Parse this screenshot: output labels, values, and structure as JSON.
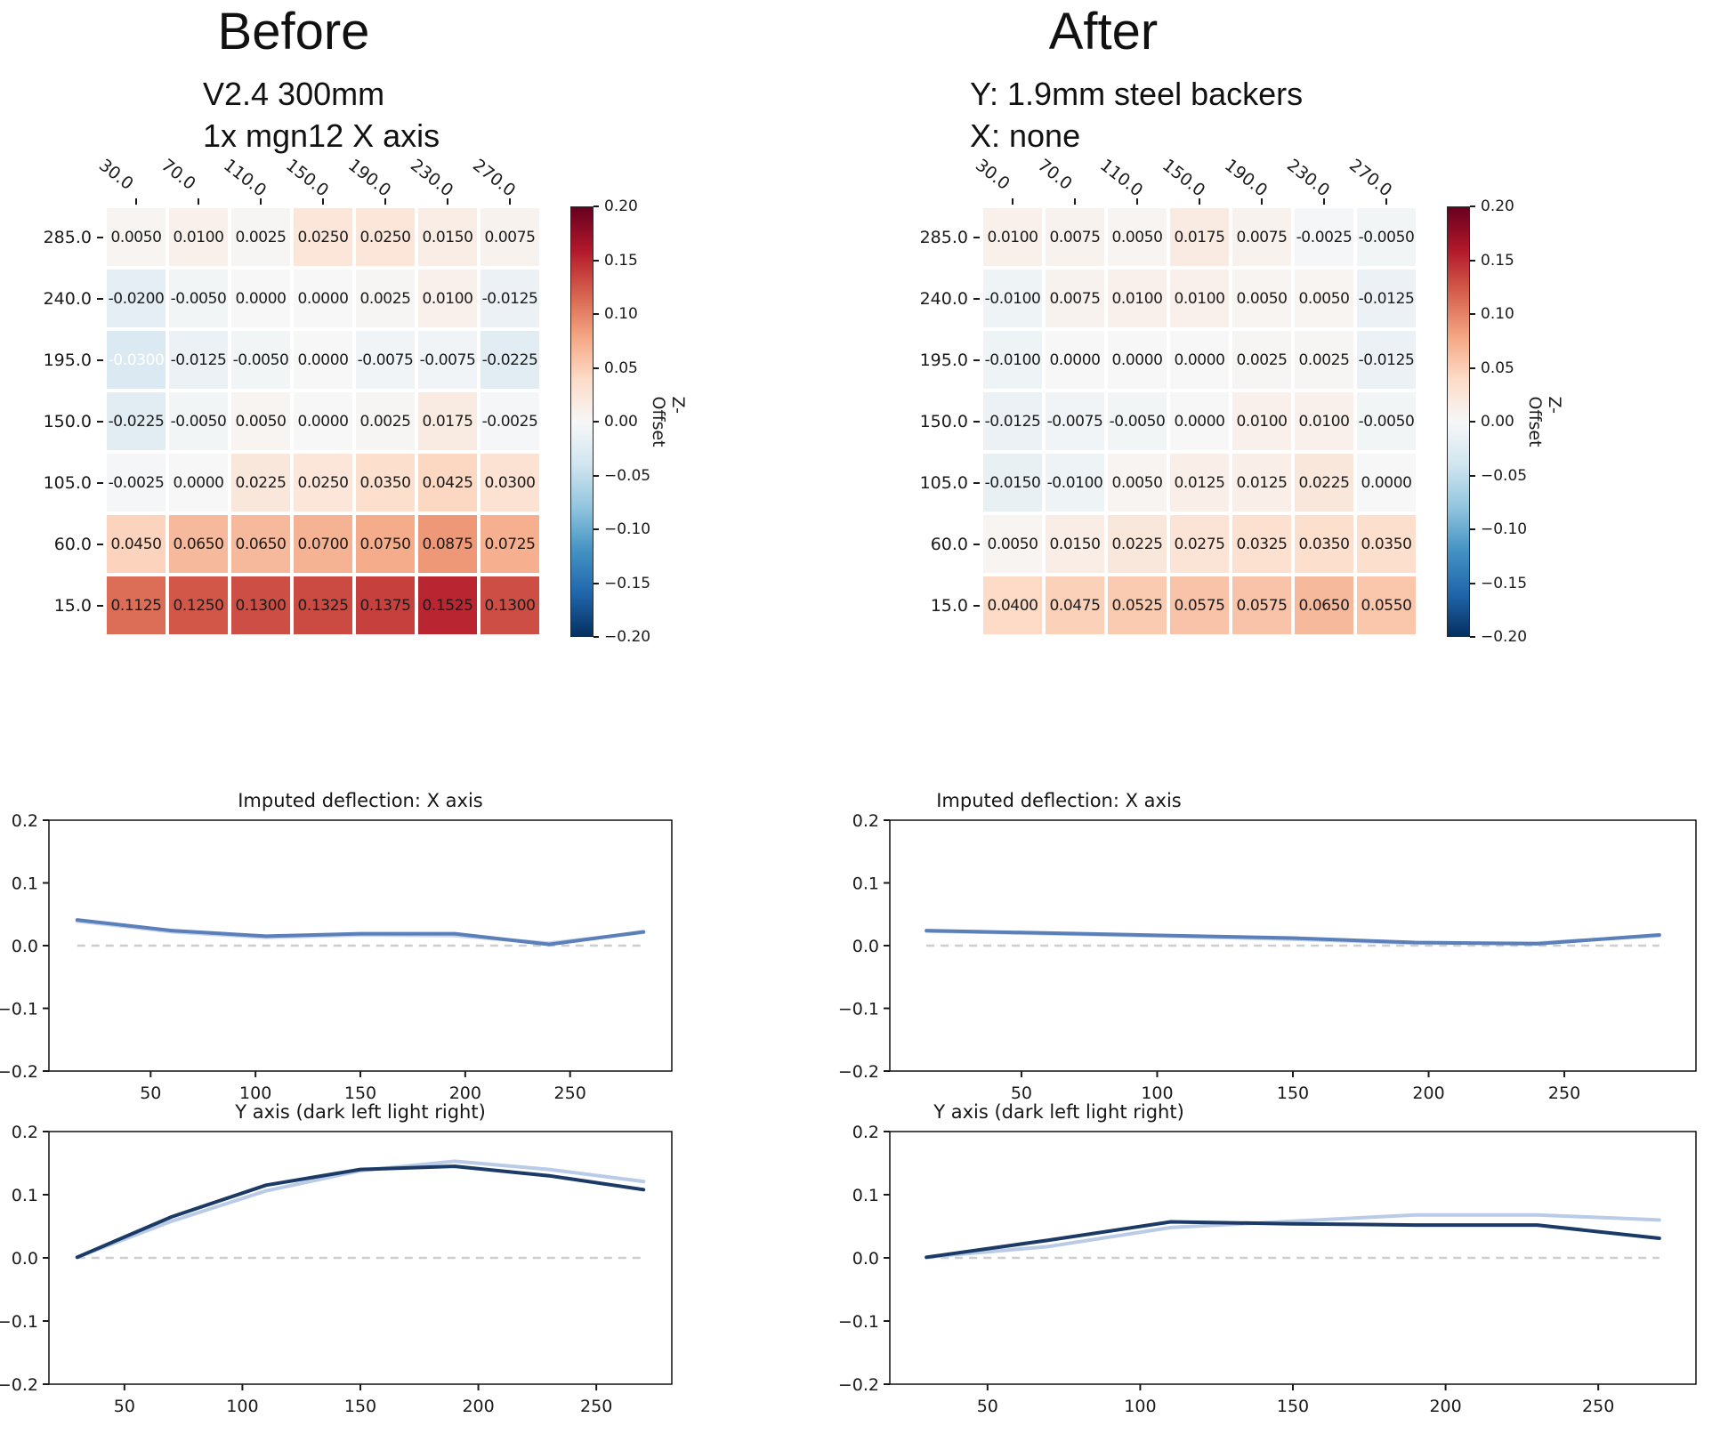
{
  "colors": {
    "background": "#ffffff",
    "text": "#1a1a1a",
    "cell_text": "#1b1b1b",
    "cell_text_light": "#ffffff",
    "zero_line": "#cdcdcd",
    "axes_box": "#000000",
    "line_primary": "#5b7fb9",
    "line_secondary": "#c7d4eb",
    "line_dark": "#1c3a66"
  },
  "colorbar_gradient": [
    "#053061",
    "#2166ac",
    "#4393c3",
    "#92c5de",
    "#d1e5f0",
    "#f7f7f7",
    "#fddbc7",
    "#f4a582",
    "#d6604d",
    "#b2182b",
    "#67001f"
  ],
  "chart_data": [
    {
      "type": "heatmap",
      "title": "Before",
      "subtitle": [
        "V2.4 300mm",
        "1x mgn12 X axis"
      ],
      "x_ticklabels": [
        "30.0",
        "70.0",
        "110.0",
        "150.0",
        "190.0",
        "230.0",
        "270.0"
      ],
      "y_ticklabels": [
        "285.0",
        "240.0",
        "195.0",
        "150.0",
        "105.0",
        "60.0",
        "15.0"
      ],
      "cell_labels": [
        [
          "0.0050",
          "0.0100",
          "0.0025",
          "0.0250",
          "0.0250",
          "0.0150",
          "0.0075"
        ],
        [
          "-0.0200",
          "-0.0050",
          "0.0000",
          "0.0000",
          "0.0025",
          "0.0100",
          "-0.0125"
        ],
        [
          "-0.0300",
          "-0.0125",
          "-0.0050",
          "0.0000",
          "-0.0075",
          "-0.0075",
          "-0.0225"
        ],
        [
          "-0.0225",
          "-0.0050",
          "0.0050",
          "0.0000",
          "0.0025",
          "0.0175",
          "-0.0025"
        ],
        [
          "-0.0025",
          "0.0000",
          "0.0225",
          "0.0250",
          "0.0350",
          "0.0425",
          "0.0300"
        ],
        [
          "0.0450",
          "0.0650",
          "0.0650",
          "0.0700",
          "0.0750",
          "0.0875",
          "0.0725"
        ],
        [
          "0.1125",
          "0.1250",
          "0.1300",
          "0.1325",
          "0.1375",
          "0.1525",
          "0.1300"
        ]
      ],
      "white_text_cells": [
        [
          2,
          0
        ]
      ],
      "vmin": -0.2,
      "vmax": 0.2,
      "colorbar": {
        "label": "Z-Offset",
        "ticks": [
          "0.20",
          "0.15",
          "0.10",
          "0.05",
          "0.00",
          "−0.05",
          "−0.10",
          "−0.15",
          "−0.20"
        ]
      }
    },
    {
      "type": "heatmap",
      "title": "After",
      "subtitle": [
        "Y: 1.9mm steel backers",
        "X: none"
      ],
      "x_ticklabels": [
        "30.0",
        "70.0",
        "110.0",
        "150.0",
        "190.0",
        "230.0",
        "270.0"
      ],
      "y_ticklabels": [
        "285.0",
        "240.0",
        "195.0",
        "150.0",
        "105.0",
        "60.0",
        "15.0"
      ],
      "cell_labels": [
        [
          "0.0100",
          "0.0075",
          "0.0050",
          "0.0175",
          "0.0075",
          "-0.0025",
          "-0.0050"
        ],
        [
          "-0.0100",
          "0.0075",
          "0.0100",
          "0.0100",
          "0.0050",
          "0.0050",
          "-0.0125"
        ],
        [
          "-0.0100",
          "0.0000",
          "0.0000",
          "0.0000",
          "0.0025",
          "0.0025",
          "-0.0125"
        ],
        [
          "-0.0125",
          "-0.0075",
          "-0.0050",
          "0.0000",
          "0.0100",
          "0.0100",
          "-0.0050"
        ],
        [
          "-0.0150",
          "-0.0100",
          "0.0050",
          "0.0125",
          "0.0125",
          "0.0225",
          "0.0000"
        ],
        [
          "0.0050",
          "0.0150",
          "0.0225",
          "0.0275",
          "0.0325",
          "0.0350",
          "0.0350"
        ],
        [
          "0.0400",
          "0.0475",
          "0.0525",
          "0.0575",
          "0.0575",
          "0.0650",
          "0.0550"
        ]
      ],
      "white_text_cells": [],
      "vmin": -0.2,
      "vmax": 0.2,
      "colorbar": {
        "label": "Z-Offset",
        "ticks": [
          "0.20",
          "0.15",
          "0.10",
          "0.05",
          "0.00",
          "−0.05",
          "−0.10",
          "−0.15",
          "−0.20"
        ]
      }
    },
    {
      "type": "line",
      "panel": 0,
      "slot": "mid",
      "title": "Imputed deflection: X axis",
      "x": [
        15,
        60,
        105,
        150,
        195,
        240,
        285
      ],
      "series": [
        {
          "name": "imputed-secondary",
          "color": "#c7d4eb",
          "y": [
            0.039,
            0.022,
            0.013,
            0.017,
            0.016,
            0.004,
            0.021
          ]
        },
        {
          "name": "imputed-primary",
          "color": "#5b7fb9",
          "y": [
            0.041,
            0.024,
            0.015,
            0.019,
            0.019,
            0.002,
            0.022
          ]
        }
      ],
      "xlim": [
        1.5,
        298.5
      ],
      "ylim": [
        -0.2,
        0.2
      ],
      "xticks": [
        50,
        100,
        150,
        200,
        250
      ],
      "xticklabels": [
        "50",
        "100",
        "150",
        "200",
        "250"
      ],
      "yticks": [
        0.2,
        0.1,
        0,
        -0.1,
        -0.2
      ],
      "yticklabels": [
        "0.2",
        "0.1",
        "0.0",
        "−0.1",
        "−0.2"
      ],
      "zero_line": true
    },
    {
      "type": "line",
      "panel": 1,
      "slot": "mid",
      "title": "Imputed deflection: X axis",
      "x": [
        15,
        60,
        105,
        150,
        195,
        240,
        285
      ],
      "series": [
        {
          "name": "imputed-secondary",
          "color": "#c7d4eb",
          "y": [
            0.023,
            0.019,
            0.015,
            0.01,
            0.004,
            0.004,
            0.016
          ]
        },
        {
          "name": "imputed-primary",
          "color": "#5b7fb9",
          "y": [
            0.024,
            0.02,
            0.016,
            0.012,
            0.005,
            0.003,
            0.017
          ]
        }
      ],
      "xlim": [
        1.5,
        298.5
      ],
      "ylim": [
        -0.2,
        0.2
      ],
      "xticks": [
        50,
        100,
        150,
        200,
        250
      ],
      "xticklabels": [
        "50",
        "100",
        "150",
        "200",
        "250"
      ],
      "yticks": [
        0.2,
        0.1,
        0,
        -0.1,
        -0.2
      ],
      "yticklabels": [
        "0.2",
        "0.1",
        "0.0",
        "−0.1",
        "−0.2"
      ],
      "zero_line": true
    },
    {
      "type": "line",
      "panel": 0,
      "slot": "bot",
      "title": "Y axis (dark left light right)",
      "x": [
        30,
        70,
        110,
        150,
        190,
        230,
        270
      ],
      "series": [
        {
          "name": "y-right-light",
          "color": "#b9cbe7",
          "y": [
            0.001,
            0.058,
            0.106,
            0.138,
            0.153,
            0.14,
            0.121
          ]
        },
        {
          "name": "y-left-dark",
          "color": "#1c3a66",
          "y": [
            0.001,
            0.065,
            0.115,
            0.14,
            0.145,
            0.13,
            0.108
          ]
        }
      ],
      "xlim": [
        18,
        282
      ],
      "ylim": [
        -0.2,
        0.2
      ],
      "xticks": [
        50,
        100,
        150,
        200,
        250
      ],
      "xticklabels": [
        "50",
        "100",
        "150",
        "200",
        "250"
      ],
      "yticks": [
        0.2,
        0.1,
        0,
        -0.1,
        -0.2
      ],
      "yticklabels": [
        "0.2",
        "0.1",
        "0.0",
        "−0.1",
        "−0.2"
      ],
      "zero_line": true
    },
    {
      "type": "line",
      "panel": 1,
      "slot": "bot",
      "title": "Y axis (dark left light right)",
      "x": [
        30,
        70,
        110,
        150,
        190,
        230,
        270
      ],
      "series": [
        {
          "name": "y-right-light",
          "color": "#b9cbe7",
          "y": [
            0.001,
            0.018,
            0.048,
            0.058,
            0.068,
            0.068,
            0.06
          ]
        },
        {
          "name": "y-left-dark",
          "color": "#1c3a66",
          "y": [
            0.001,
            0.028,
            0.057,
            0.054,
            0.052,
            0.052,
            0.031
          ]
        }
      ],
      "xlim": [
        18,
        282
      ],
      "ylim": [
        -0.2,
        0.2
      ],
      "xticks": [
        50,
        100,
        150,
        200,
        250
      ],
      "xticklabels": [
        "50",
        "100",
        "150",
        "200",
        "250"
      ],
      "yticks": [
        0.2,
        0.1,
        0,
        -0.1,
        -0.2
      ],
      "yticklabels": [
        "0.2",
        "0.1",
        "0.0",
        "−0.1",
        "−0.2"
      ],
      "zero_line": true
    }
  ]
}
